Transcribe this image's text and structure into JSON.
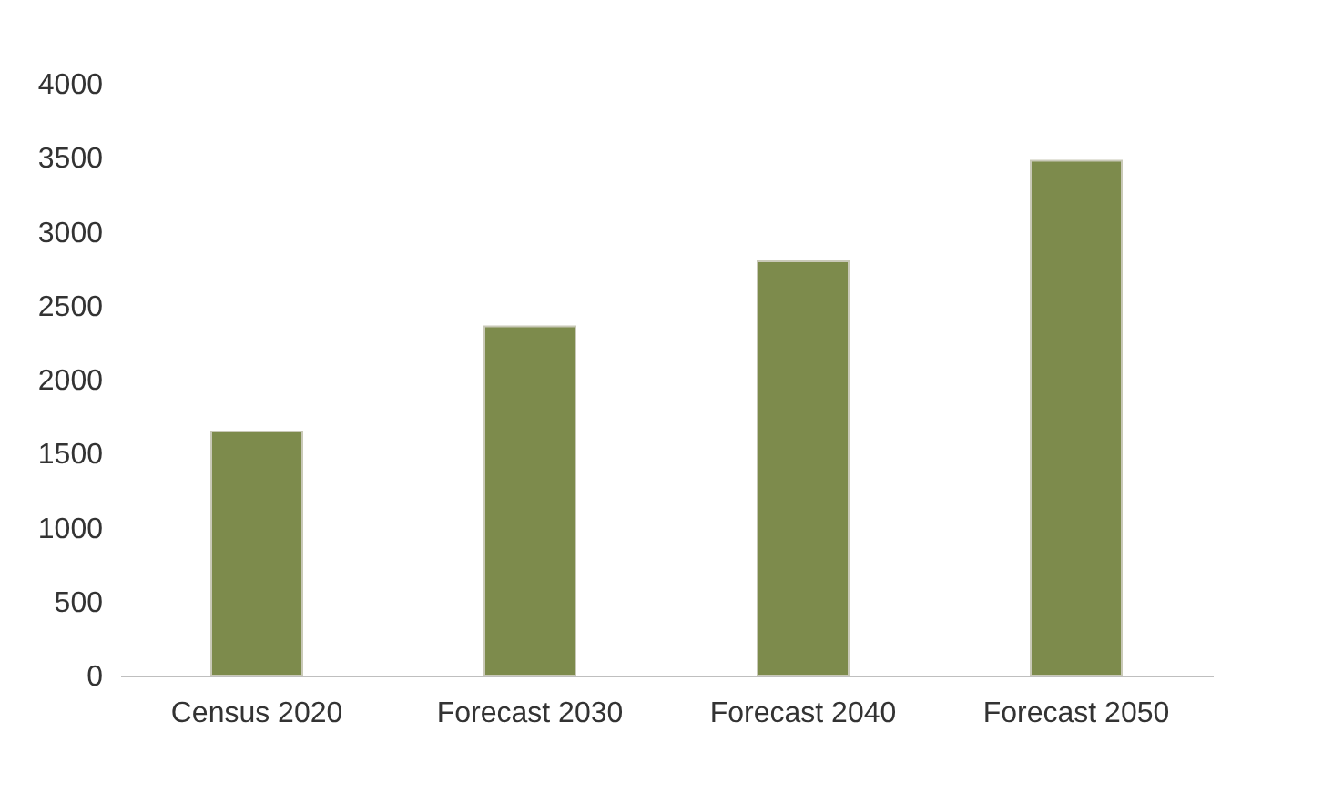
{
  "chart_data": {
    "type": "bar",
    "categories": [
      "Census 2020",
      "Forecast 2030",
      "Forecast 2040",
      "Forecast 2050"
    ],
    "values": [
      1650,
      2360,
      2800,
      3480
    ],
    "color": "#7d8b4c",
    "ylim": [
      0,
      4000
    ],
    "yticks": [
      0,
      500,
      1000,
      1500,
      2000,
      2500,
      3000,
      3500,
      4000
    ],
    "grid": false
  }
}
